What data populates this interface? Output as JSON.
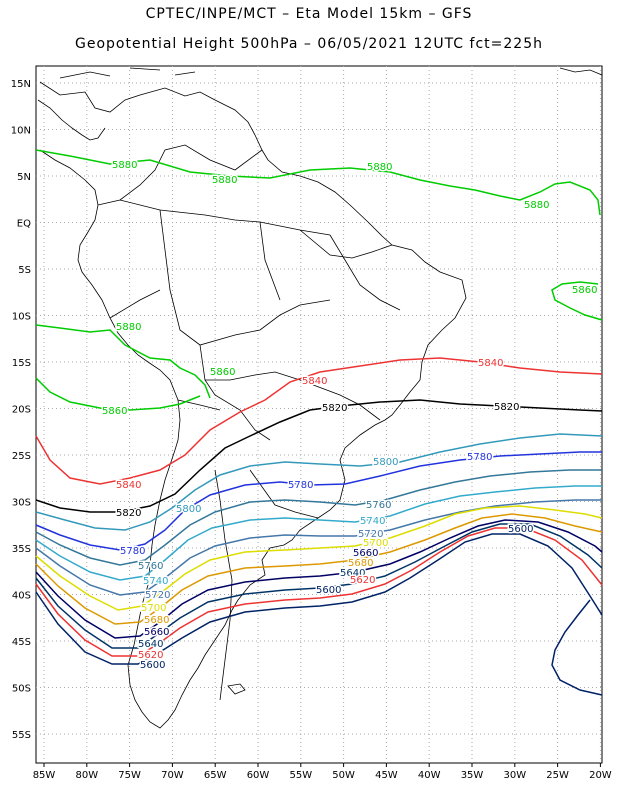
{
  "header": {
    "line1": "CPTEC/INPE/MCT –  Eta Model 15km – GFS",
    "line2": "Geopotential Height 500hPa – 06/05/2021 12UTC fct=225h"
  },
  "axes": {
    "lat_labels": [
      "15N",
      "10N",
      "5N",
      "EQ",
      "5S",
      "10S",
      "15S",
      "20S",
      "25S",
      "30S",
      "35S",
      "40S",
      "45S",
      "50S",
      "55S"
    ],
    "lon_labels": [
      "85W",
      "80W",
      "75W",
      "70W",
      "65W",
      "60W",
      "55W",
      "50W",
      "45W",
      "40W",
      "35W",
      "30W",
      "25W",
      "20W"
    ]
  },
  "contours": [
    {
      "value": "5880",
      "color": "#00cc00"
    },
    {
      "value": "5860",
      "color": "#00cc00"
    },
    {
      "value": "5840",
      "color": "#ee3333"
    },
    {
      "value": "5820",
      "color": "#000000"
    },
    {
      "value": "5800",
      "color": "#3399bb"
    },
    {
      "value": "5780",
      "color": "#2233dd"
    },
    {
      "value": "5760",
      "color": "#337799"
    },
    {
      "value": "5740",
      "color": "#33aacc"
    },
    {
      "value": "5720",
      "color": "#4477aa"
    },
    {
      "value": "5700",
      "color": "#dddd00"
    },
    {
      "value": "5680",
      "color": "#dd9900"
    },
    {
      "value": "5660",
      "color": "#000066"
    },
    {
      "value": "5640",
      "color": "#003366"
    },
    {
      "value": "5620",
      "color": "#ee3333"
    },
    {
      "value": "5600",
      "color": "#002266"
    }
  ],
  "colors": {
    "grid": "#aaaaaa",
    "coast": "#000000",
    "background": "#ffffff"
  }
}
